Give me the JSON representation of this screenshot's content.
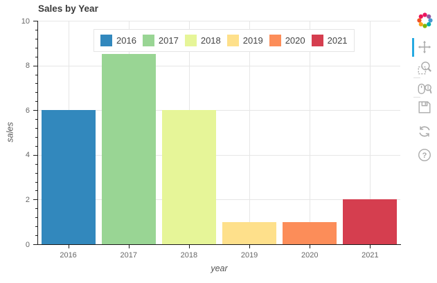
{
  "chart_data": {
    "type": "bar",
    "title": "Sales by Year",
    "categories": [
      "2016",
      "2017",
      "2018",
      "2019",
      "2020",
      "2021"
    ],
    "values": [
      6,
      8.5,
      6,
      1,
      1,
      2
    ],
    "colors": [
      "#3288bd",
      "#99d594",
      "#e6f598",
      "#fee08b",
      "#fc8d59",
      "#d53e4f"
    ],
    "xlabel": "year",
    "ylabel": "sales",
    "ylim": [
      0,
      10
    ],
    "y_major_ticks": [
      0,
      2,
      4,
      6,
      8,
      10
    ],
    "y_minor_tick_step": 0.4,
    "bar_width_fraction": 0.9,
    "grid": true,
    "legend_position": "top_center",
    "legend_entries": [
      {
        "label": "2016",
        "color": "#3288bd"
      },
      {
        "label": "2017",
        "color": "#99d594"
      },
      {
        "label": "2018",
        "color": "#e6f598"
      },
      {
        "label": "2019",
        "color": "#fee08b"
      },
      {
        "label": "2020",
        "color": "#fc8d59"
      },
      {
        "label": "2021",
        "color": "#d53e4f"
      }
    ]
  },
  "toolbar": {
    "active_tool": "pan-tool",
    "active_color": "#26aae1",
    "icon_color": "#a9a9a9",
    "tools": [
      "bokeh-logo",
      "pan-tool",
      "box-zoom-tool",
      "wheel-zoom-tool",
      "save-tool",
      "reset-tool",
      "help-tool"
    ]
  }
}
